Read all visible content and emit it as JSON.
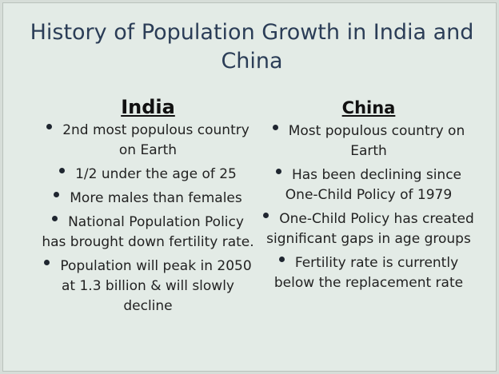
{
  "slide": {
    "title": "History of Population Growth in India and China",
    "india": {
      "heading": "India",
      "bullets": [
        "2nd most populous country on Earth",
        "1/2 under the age of 25",
        "More males than females",
        "National Population Policy has brought down fertility rate.",
        "Population will peak in 2050 at 1.3 billion & will slowly decline"
      ]
    },
    "china": {
      "heading": "China",
      "bullets": [
        "Most populous country on Earth",
        "Has been declining since One-Child Policy of 1979",
        "One-Child Policy has created significant gaps in age groups",
        "Fertility rate is currently below the replacement rate"
      ]
    }
  }
}
